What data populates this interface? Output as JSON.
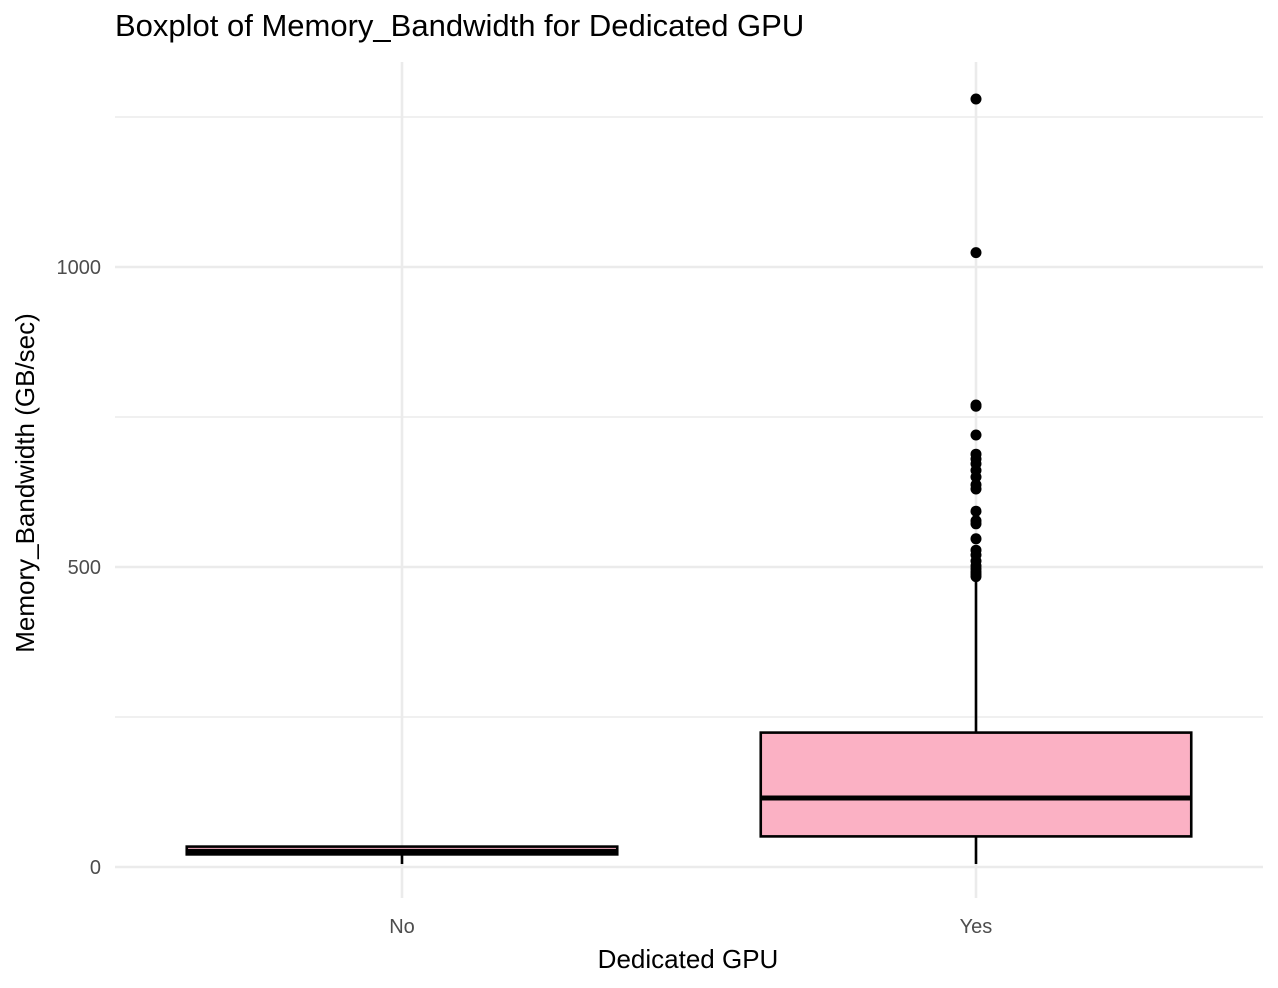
{
  "chart_data": {
    "type": "boxplot",
    "title": "Boxplot of Memory_Bandwidth for Dedicated GPU",
    "xlabel": "Dedicated GPU",
    "ylabel": "Memory_Bandwidth (GB/sec)",
    "ylim": [
      -45,
      1285
    ],
    "y_ticks": [
      0,
      500,
      1000
    ],
    "y_minor_ticks": [
      250,
      750,
      1250
    ],
    "grid": true,
    "categories": [
      "No",
      "Yes"
    ],
    "fill_color": "#FBB1C4",
    "stroke_color": "#000000",
    "boxes": [
      {
        "category": "No",
        "whisker_low": 5,
        "q1": 21,
        "median": 26,
        "q3": 34,
        "whisker_high": 34,
        "outliers": []
      },
      {
        "category": "Yes",
        "whisker_low": 5,
        "q1": 51,
        "median": 115,
        "q3": 224,
        "whisker_high": 480,
        "outliers": [
          484,
          488,
          492,
          497,
          502,
          510,
          520,
          528,
          547,
          572,
          577,
          593,
          630,
          637,
          650,
          661,
          672,
          680,
          688,
          720,
          768,
          770,
          1024,
          1280
        ]
      }
    ]
  }
}
